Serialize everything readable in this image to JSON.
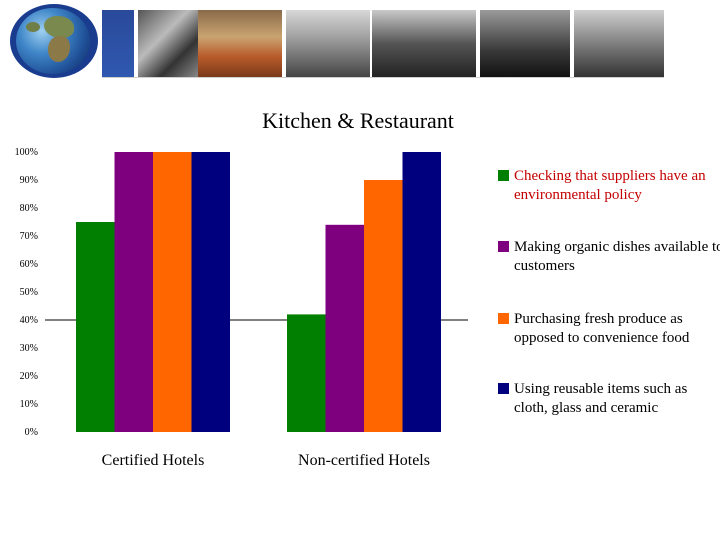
{
  "chart_data": {
    "type": "bar",
    "title": "Kitchen & Restaurant",
    "categories": [
      "Certified Hotels",
      "Non-certified Hotels"
    ],
    "ylim": [
      0,
      100
    ],
    "yticks": [
      "0%",
      "10%",
      "20%",
      "30%",
      "40%",
      "50%",
      "60%",
      "70%",
      "80%",
      "90%",
      "100%"
    ],
    "reference_line": 40,
    "legend_position": "right",
    "series": [
      {
        "name": "Checking that suppliers have an environmental policy",
        "color": "#007f00",
        "values": [
          75,
          42
        ]
      },
      {
        "name": "Making organic dishes available to customers",
        "color": "#7f007f",
        "values": [
          100,
          74
        ]
      },
      {
        "name": "Purchasing fresh produce as opposed to convenience food",
        "color": "#ff6600",
        "values": [
          100,
          90
        ]
      },
      {
        "name": "Using reusable items such as cloth, glass and ceramic",
        "color": "#00007f",
        "values": [
          100,
          100
        ]
      }
    ]
  },
  "legend_highlight_color": "#c40000"
}
